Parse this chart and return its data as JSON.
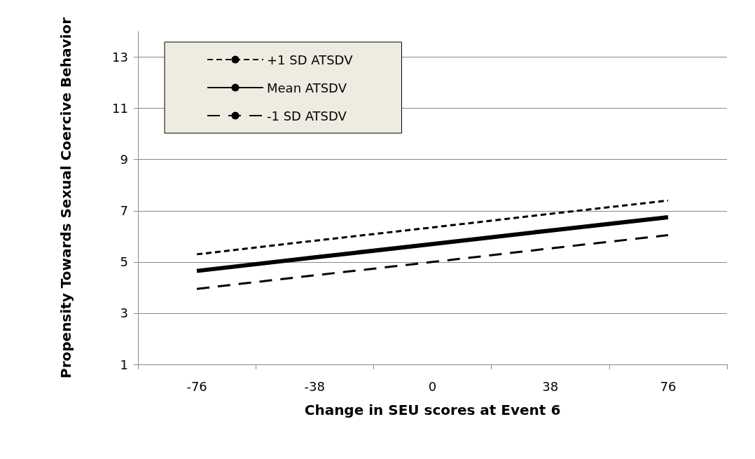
{
  "chart_data": {
    "type": "line",
    "xlabel": "Change in SEU scores at Event 6",
    "ylabel": "Propensity Towards Sexual Coercive Behavior",
    "categories": [
      "-76",
      "-38",
      "0",
      "38",
      "76"
    ],
    "series": [
      {
        "name": "+1 SD ATSDV",
        "color": "#000000",
        "line_style": "dotted",
        "values": [
          5.3,
          5.83,
          6.35,
          6.88,
          7.4
        ]
      },
      {
        "name": "Mean ATSDV",
        "color": "#000000",
        "line_style": "solid",
        "values": [
          4.65,
          5.18,
          5.7,
          6.23,
          6.75
        ]
      },
      {
        "name": "-1 SD ATSDV",
        "color": "#000000",
        "line_style": "dashed",
        "values": [
          3.95,
          4.48,
          5.0,
          5.53,
          6.05
        ]
      }
    ],
    "ylim": [
      1,
      14
    ],
    "yticks": [
      1,
      3,
      5,
      7,
      9,
      11,
      13
    ],
    "grid": "y",
    "legend": "top left",
    "marker": "none"
  }
}
